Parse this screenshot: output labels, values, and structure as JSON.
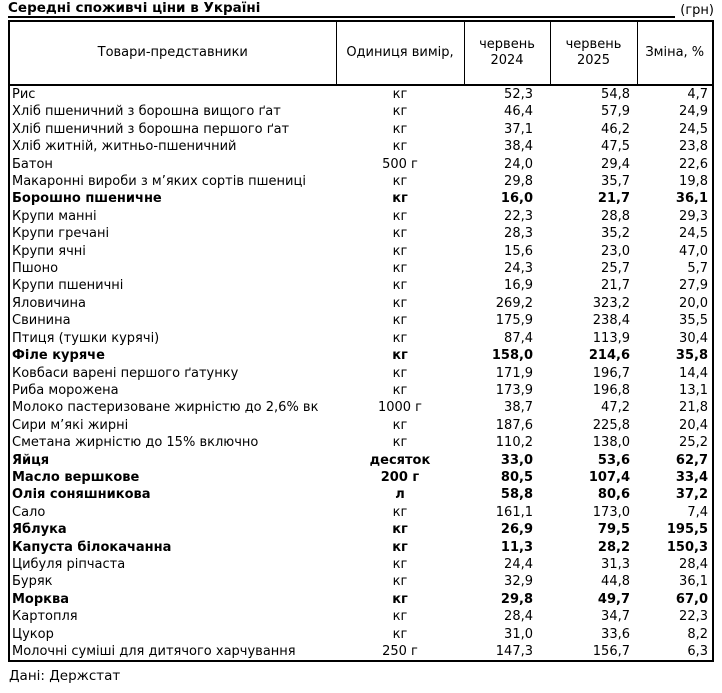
{
  "title": "Середні споживчі ціни в Україні",
  "currency_note": "(грн)",
  "footer": "Дані: Держстат",
  "table": {
    "columns": [
      "Товари-представники",
      "Одиниця вимір,",
      "червень 2024",
      "червень 2025",
      "Зміна, %"
    ],
    "rows": [
      {
        "name": "Рис",
        "unit": "кг",
        "y2024": "52,3",
        "y2025": "54,8",
        "change": "4,7",
        "bold": false
      },
      {
        "name": "Хліб пшеничний з борошна вищого ґат",
        "unit": "кг",
        "y2024": "46,4",
        "y2025": "57,9",
        "change": "24,9",
        "bold": false
      },
      {
        "name": "Хліб пшеничний з борошна першого ґат",
        "unit": "кг",
        "y2024": "37,1",
        "y2025": "46,2",
        "change": "24,5",
        "bold": false
      },
      {
        "name": "Хліб житній, житньо-пшеничний",
        "unit": "кг",
        "y2024": "38,4",
        "y2025": "47,5",
        "change": "23,8",
        "bold": false
      },
      {
        "name": "Батон",
        "unit": "500 г",
        "y2024": "24,0",
        "y2025": "29,4",
        "change": "22,6",
        "bold": false
      },
      {
        "name": "Макаронні вироби з м’яких сортів пшениці",
        "unit": "кг",
        "y2024": "29,8",
        "y2025": "35,7",
        "change": "19,8",
        "bold": false
      },
      {
        "name": "Борошно пшеничне",
        "unit": "кг",
        "y2024": "16,0",
        "y2025": "21,7",
        "change": "36,1",
        "bold": true
      },
      {
        "name": "Крупи манні",
        "unit": "кг",
        "y2024": "22,3",
        "y2025": "28,8",
        "change": "29,3",
        "bold": false
      },
      {
        "name": "Крупи гречані",
        "unit": "кг",
        "y2024": "28,3",
        "y2025": "35,2",
        "change": "24,5",
        "bold": false
      },
      {
        "name": "Крупи ячні",
        "unit": "кг",
        "y2024": "15,6",
        "y2025": "23,0",
        "change": "47,0",
        "bold": false
      },
      {
        "name": "Пшоно",
        "unit": "кг",
        "y2024": "24,3",
        "y2025": "25,7",
        "change": "5,7",
        "bold": false
      },
      {
        "name": "Крупи пшеничні",
        "unit": "кг",
        "y2024": "16,9",
        "y2025": "21,7",
        "change": "27,9",
        "bold": false
      },
      {
        "name": "Яловичина",
        "unit": "кг",
        "y2024": "269,2",
        "y2025": "323,2",
        "change": "20,0",
        "bold": false
      },
      {
        "name": "Свинина",
        "unit": "кг",
        "y2024": "175,9",
        "y2025": "238,4",
        "change": "35,5",
        "bold": false
      },
      {
        "name": "Птиця (тушки курячі)",
        "unit": "кг",
        "y2024": "87,4",
        "y2025": "113,9",
        "change": "30,4",
        "bold": false
      },
      {
        "name": "Філе куряче",
        "unit": "кг",
        "y2024": "158,0",
        "y2025": "214,6",
        "change": "35,8",
        "bold": true
      },
      {
        "name": "Ковбаси варені першого ґатунку",
        "unit": "кг",
        "y2024": "171,9",
        "y2025": "196,7",
        "change": "14,4",
        "bold": false
      },
      {
        "name": "Риба морожена",
        "unit": "кг",
        "y2024": "173,9",
        "y2025": "196,8",
        "change": "13,1",
        "bold": false
      },
      {
        "name": "Молоко пастеризоване жирністю до 2,6% вк",
        "unit": "1000 г",
        "y2024": "38,7",
        "y2025": "47,2",
        "change": "21,8",
        "bold": false
      },
      {
        "name": "Сири м’які жирні",
        "unit": "кг",
        "y2024": "187,6",
        "y2025": "225,8",
        "change": "20,4",
        "bold": false
      },
      {
        "name": "Сметана жирністю до 15% включно",
        "unit": "кг",
        "y2024": "110,2",
        "y2025": "138,0",
        "change": "25,2",
        "bold": false
      },
      {
        "name": "Яйця",
        "unit": "десяток",
        "y2024": "33,0",
        "y2025": "53,6",
        "change": "62,7",
        "bold": true
      },
      {
        "name": "Масло вершкове",
        "unit": "200 г",
        "y2024": "80,5",
        "y2025": "107,4",
        "change": "33,4",
        "bold": true
      },
      {
        "name": "Олія соняшникова",
        "unit": "л",
        "y2024": "58,8",
        "y2025": "80,6",
        "change": "37,2",
        "bold": true
      },
      {
        "name": "Сало",
        "unit": "кг",
        "y2024": "161,1",
        "y2025": "173,0",
        "change": "7,4",
        "bold": false
      },
      {
        "name": "Яблука",
        "unit": "кг",
        "y2024": "26,9",
        "y2025": "79,5",
        "change": "195,5",
        "bold": true
      },
      {
        "name": "Капуста білокачанна",
        "unit": "кг",
        "y2024": "11,3",
        "y2025": "28,2",
        "change": "150,3",
        "bold": true
      },
      {
        "name": "Цибуля ріпчаста",
        "unit": "кг",
        "y2024": "24,4",
        "y2025": "31,3",
        "change": "28,4",
        "bold": false
      },
      {
        "name": "Буряк",
        "unit": "кг",
        "y2024": "32,9",
        "y2025": "44,8",
        "change": "36,1",
        "bold": false
      },
      {
        "name": "Морква",
        "unit": "кг",
        "y2024": "29,8",
        "y2025": "49,7",
        "change": "67,0",
        "bold": true
      },
      {
        "name": "Картопля",
        "unit": "кг",
        "y2024": "28,4",
        "y2025": "34,7",
        "change": "22,3",
        "bold": false
      },
      {
        "name": "Цукор",
        "unit": "кг",
        "y2024": "31,0",
        "y2025": "33,6",
        "change": "8,2",
        "bold": false
      },
      {
        "name": "Молочні суміші для дитячого харчування",
        "unit": "250 г",
        "y2024": "147,3",
        "y2025": "156,7",
        "change": "6,3",
        "bold": false
      }
    ]
  }
}
